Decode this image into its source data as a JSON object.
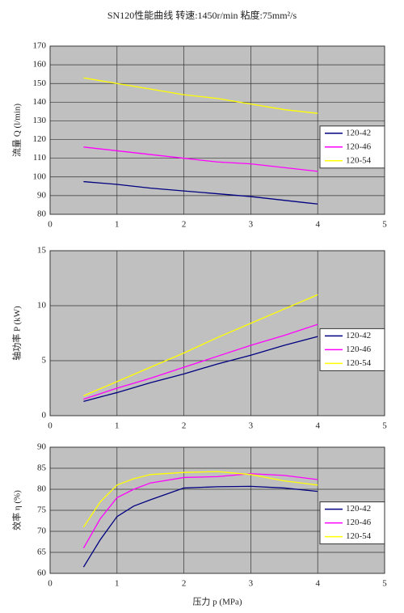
{
  "title": "SN120性能曲线    转速:1450r/min 粘度:75mm²/s",
  "chart_data": [
    {
      "type": "line",
      "y_label": "流量 Q (l/min)",
      "x": [
        0.5,
        1,
        1.5,
        2,
        2.5,
        3,
        3.5,
        4
      ],
      "series": [
        {
          "name": "120-42",
          "color": "#000080",
          "values": [
            97.5,
            96,
            94,
            92.5,
            91,
            89.5,
            87.5,
            85.5
          ]
        },
        {
          "name": "120-46",
          "color": "#ff00ff",
          "values": [
            116,
            114,
            112,
            110,
            108,
            107,
            105,
            103
          ]
        },
        {
          "name": "120-54",
          "color": "#ffff00",
          "values": [
            153,
            150,
            147,
            144,
            142,
            139,
            136,
            134
          ]
        }
      ],
      "xlim": [
        0,
        5
      ],
      "xticks": [
        0,
        1,
        2,
        3,
        4,
        5
      ],
      "ylim": [
        80,
        170
      ],
      "yticks": [
        80,
        90,
        100,
        110,
        120,
        130,
        140,
        150,
        160,
        170
      ],
      "grid": true,
      "legend": "right",
      "background": "#c0c0c0"
    },
    {
      "type": "line",
      "y_label": "轴功率 P (kW)",
      "x": [
        0.5,
        1,
        1.5,
        2,
        2.5,
        3,
        3.5,
        4
      ],
      "series": [
        {
          "name": "120-42",
          "color": "#000080",
          "values": [
            1.3,
            2.1,
            3.0,
            3.8,
            4.7,
            5.5,
            6.4,
            7.2
          ]
        },
        {
          "name": "120-46",
          "color": "#ff00ff",
          "values": [
            1.5,
            2.5,
            3.4,
            4.4,
            5.4,
            6.4,
            7.3,
            8.3
          ]
        },
        {
          "name": "120-54",
          "color": "#ffff00",
          "values": [
            1.8,
            3.1,
            4.4,
            5.7,
            7.1,
            8.4,
            9.7,
            11.0
          ]
        }
      ],
      "xlim": [
        0,
        5
      ],
      "xticks": [
        0,
        1,
        2,
        3,
        4,
        5
      ],
      "ylim": [
        0,
        15
      ],
      "yticks": [
        0,
        5,
        10,
        15
      ],
      "grid": true,
      "legend": "right",
      "background": "#c0c0c0"
    },
    {
      "type": "line",
      "y_label": "效率 η (%)",
      "x_label": "压力 p (MPa)",
      "x": [
        0.5,
        0.75,
        1,
        1.25,
        1.5,
        2,
        2.5,
        3,
        3.5,
        4
      ],
      "series": [
        {
          "name": "120-42",
          "color": "#000080",
          "values": [
            61.5,
            68,
            73.5,
            76,
            77.5,
            80.3,
            80.6,
            80.7,
            80.3,
            79.5
          ]
        },
        {
          "name": "120-46",
          "color": "#ff00ff",
          "values": [
            66,
            73,
            78,
            80,
            81.5,
            82.8,
            83,
            83.7,
            83.3,
            82.3
          ]
        },
        {
          "name": "120-54",
          "color": "#ffff00",
          "values": [
            71,
            77,
            81,
            82.5,
            83.5,
            84,
            84.2,
            83.5,
            82,
            81
          ]
        }
      ],
      "xlim": [
        0,
        5
      ],
      "xticks": [
        0,
        1,
        2,
        3,
        4,
        5
      ],
      "ylim": [
        60,
        90
      ],
      "yticks": [
        60,
        65,
        70,
        75,
        80,
        85,
        90
      ],
      "grid": true,
      "legend": "right",
      "background": "#c0c0c0"
    }
  ]
}
